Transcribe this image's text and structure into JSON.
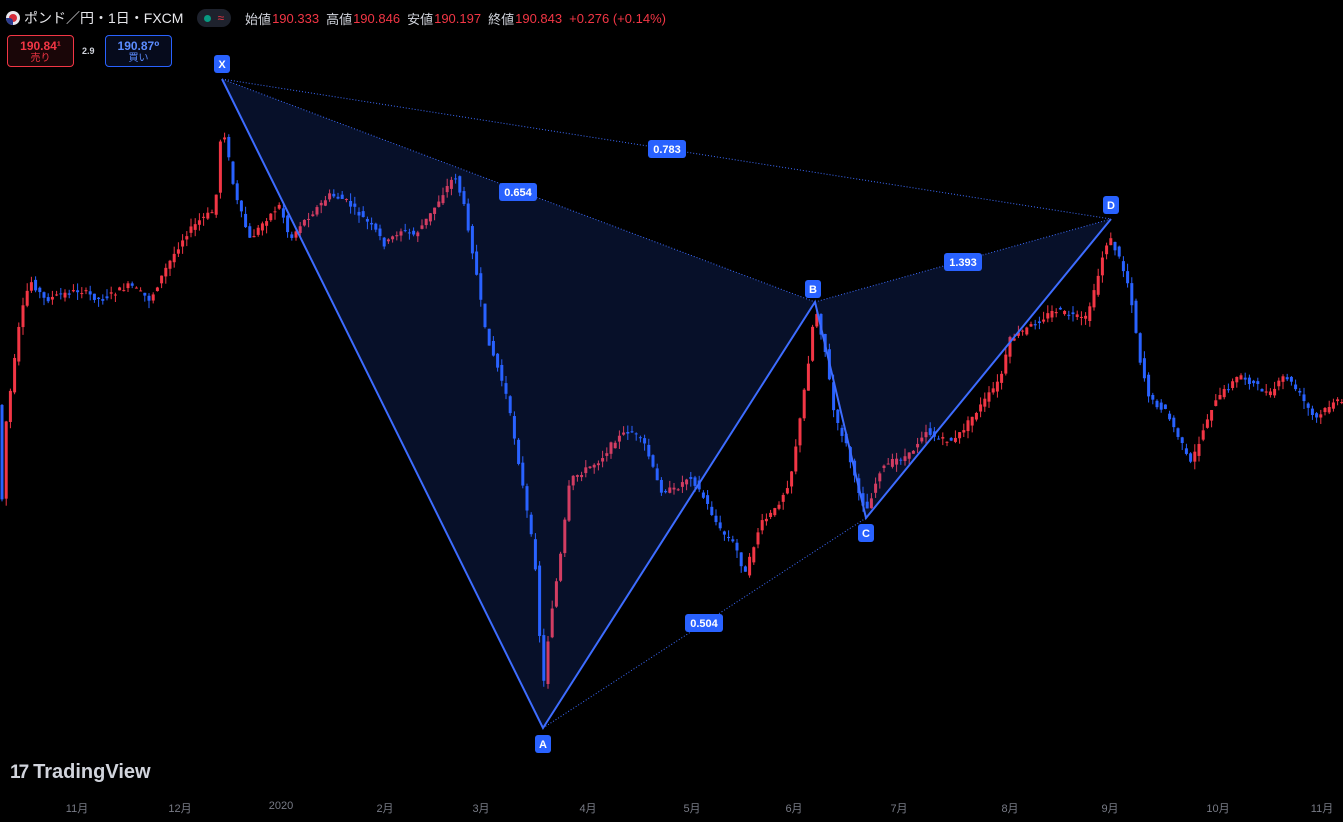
{
  "symbol": {
    "title": "ポンド／円・1日・FXCM",
    "icon": "gbp-jpy-flag-icon",
    "market_status": "market-open-dot-icon"
  },
  "ohlc": {
    "open_label": "始値",
    "open": "190.333",
    "high_label": "高値",
    "high": "190.846",
    "low_label": "安値",
    "low": "190.197",
    "close_label": "終値",
    "close": "190.843",
    "change": "+0.276 (+0.14%)"
  },
  "trade": {
    "sell_price": "190.84¹",
    "sell_label": "売り",
    "spread": "2.9",
    "buy_price": "190.87⁰",
    "buy_label": "買い"
  },
  "pattern": {
    "points": [
      "X",
      "A",
      "B",
      "C",
      "D"
    ],
    "ratios": {
      "xb": "0.654",
      "ac": "0.504",
      "bd": "1.393",
      "xd": "0.783"
    },
    "color": "#2962ff"
  },
  "xaxis_labels": [
    "11月",
    "12月",
    "2020",
    "2月",
    "3月",
    "4月",
    "5月",
    "6月",
    "7月",
    "8月",
    "9月",
    "10月",
    "11月"
  ],
  "watermark": "TradingView",
  "colors": {
    "up": "#f23645",
    "down": "#2962ff",
    "background": "#000000"
  }
}
